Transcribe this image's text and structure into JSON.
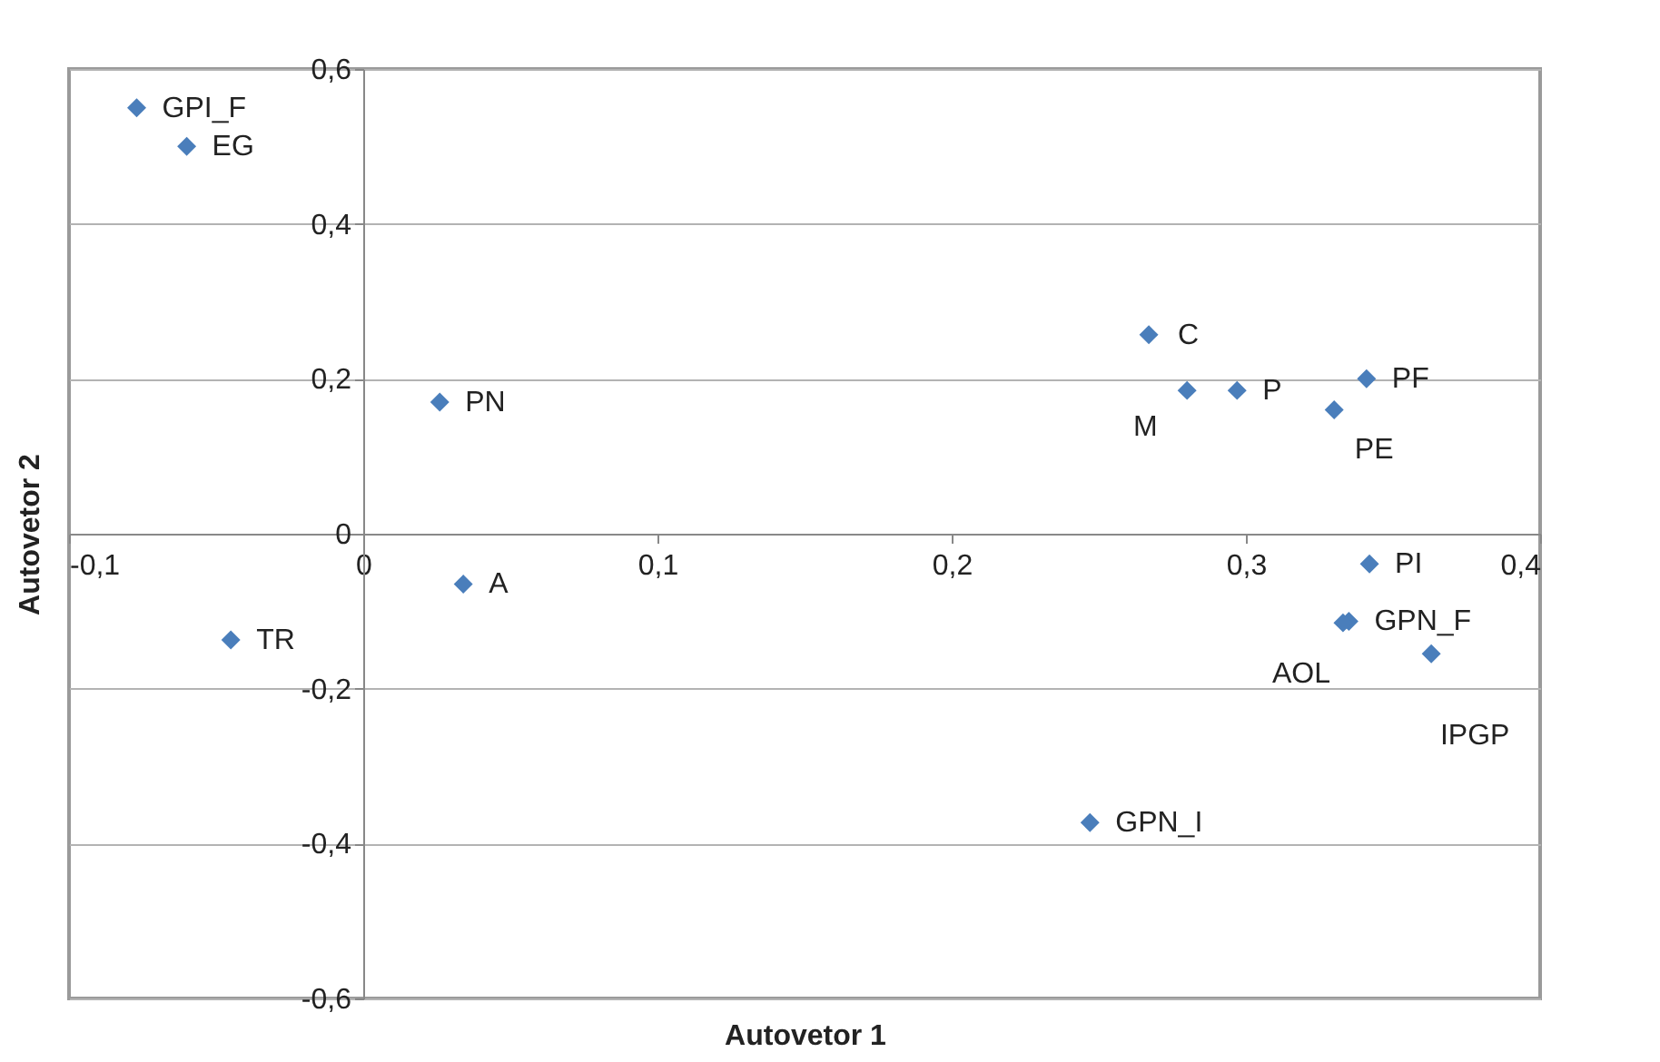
{
  "chart_data": {
    "type": "scatter",
    "xlabel": "Autovetor 1",
    "ylabel": "Autovetor 2",
    "x": [
      -0.077,
      -0.06,
      0.026,
      0.034,
      -0.045,
      0.267,
      0.28,
      0.297,
      0.33,
      0.341,
      0.342,
      0.335,
      0.333,
      0.363,
      0.247
    ],
    "values": [
      0.55,
      0.5,
      0.17,
      -0.065,
      -0.137,
      0.257,
      0.185,
      0.185,
      0.16,
      0.2,
      -0.039,
      -0.113,
      -0.115,
      -0.155,
      -0.373
    ],
    "color": "#4a7ebb",
    "marker": "diamond",
    "grid": "y",
    "xlim": [
      -0.1,
      0.4
    ],
    "ylim": [
      -0.6,
      0.6
    ],
    "xticks": [
      {
        "value": -0.1,
        "label": "-0,1"
      },
      0,
      {
        "value": 0.1,
        "label": "0,1"
      },
      {
        "value": 0.2,
        "label": "0,2"
      },
      {
        "value": 0.3,
        "label": "0,3"
      },
      {
        "value": 0.4,
        "label": "0,4"
      }
    ],
    "yticks": [
      {
        "value": -0.6,
        "label": "-0,6"
      },
      {
        "value": -0.4,
        "label": "-0,4"
      },
      {
        "value": -0.2,
        "label": "-0,2"
      },
      0,
      {
        "value": 0.2,
        "label": "0,2"
      },
      {
        "value": 0.4,
        "label": "0,4"
      },
      {
        "value": 0.6,
        "label": "0,6"
      }
    ],
    "annotations": [
      {
        "text": "GPI_F",
        "x": -0.077,
        "y": 0.55
      },
      {
        "text": "EG",
        "x": -0.06,
        "y": 0.5
      },
      {
        "text": "PN",
        "x": 0.026,
        "y": 0.17
      },
      {
        "text": "A",
        "x": 0.034,
        "y": -0.065
      },
      {
        "text": "TR",
        "x": -0.045,
        "y": -0.137
      },
      {
        "text": "C",
        "x": 0.267,
        "y": 0.257
      },
      {
        "text": "M",
        "x": 0.28,
        "y": 0.185
      },
      {
        "text": "P",
        "x": 0.297,
        "y": 0.185
      },
      {
        "text": "PE",
        "x": 0.33,
        "y": 0.16
      },
      {
        "text": "PF",
        "x": 0.341,
        "y": 0.2
      },
      {
        "text": "PI",
        "x": 0.342,
        "y": -0.039
      },
      {
        "text": "GPN_F",
        "x": 0.335,
        "y": -0.113
      },
      {
        "text": "AOL",
        "x": 0.333,
        "y": -0.115
      },
      {
        "text": "IPGP",
        "x": 0.363,
        "y": -0.155
      },
      {
        "text": "GPN_I",
        "x": 0.247,
        "y": -0.373
      }
    ]
  }
}
